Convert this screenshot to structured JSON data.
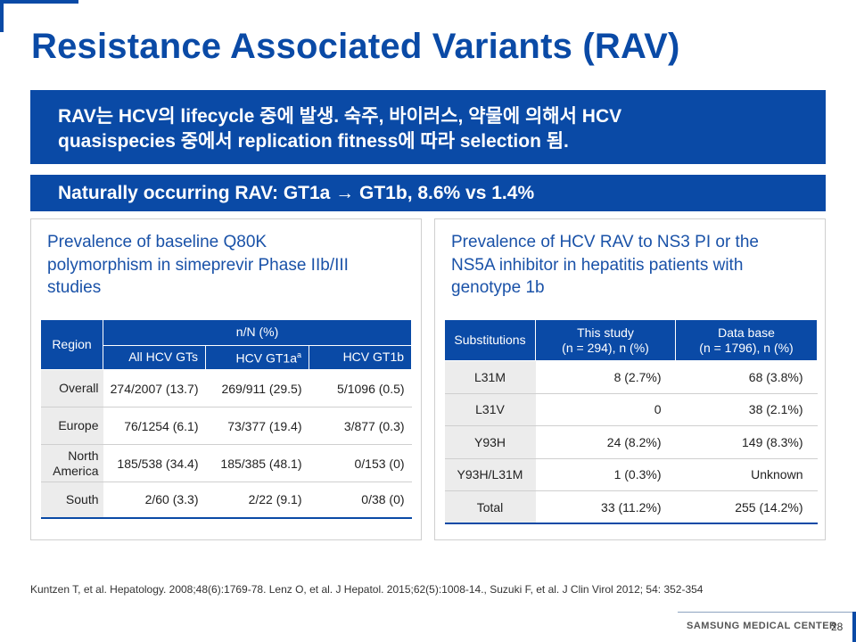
{
  "slide": {
    "title": "Resistance Associated Variants (RAV)",
    "banner1": {
      "line1": "RAV는 HCV의 lifecycle 중에 발생. 숙주, 바이러스, 약물에 의해서 HCV",
      "line2": "quasispecies  중에서 replication fitness에 따라 selection 됨."
    },
    "banner2": "Naturally occurring RAV:  GT1a  → GT1b, 8.6% vs 1.4%",
    "footnote": "Kuntzen T, et al. Hepatology. 2008;48(6):1769-78. Lenz O, et al. J Hepatol.  2015;62(5):1008-14., Suzuki F, et al. J Clin Virol 2012; 54: 352-354",
    "brand": "SAMSUNG MEDICAL CENTER",
    "page_number": "28"
  },
  "left_panel": {
    "heading": {
      "line1": "Prevalence of baseline Q80K",
      "line2": "polymorphism  in simeprevir Phase IIb/III",
      "line3": "studies"
    },
    "table": {
      "region_header": "Region",
      "group_header": "n/N (%)",
      "col1": "All HCV GTs",
      "col2": "HCV GT1a",
      "col2_sup": "a",
      "col3": "HCV GT1b",
      "rows": [
        {
          "region": "Overall",
          "all": "274/2007 (13.7)",
          "gt1a": "269/911 (29.5)",
          "gt1b": "5/1096 (0.5)"
        },
        {
          "region": "Europe",
          "all": "76/1254 (6.1)",
          "gt1a": "73/377 (19.4)",
          "gt1b": "3/877 (0.3)"
        },
        {
          "region_line1": "North",
          "region_line2": "America",
          "all": "185/538 (34.4)",
          "gt1a": "185/385 (48.1)",
          "gt1b": "0/153 (0)"
        },
        {
          "region": "South",
          "all": "2/60 (3.3)",
          "gt1a": "2/22 (9.1)",
          "gt1b": "0/38 (0)"
        }
      ]
    }
  },
  "right_panel": {
    "heading": {
      "line1": "Prevalence of HCV RAV to NS3 PI or the",
      "line2": "NS5A inhibitor in hepatitis patients with",
      "line3": "genotype  1b"
    },
    "table": {
      "col1": "Substitutions",
      "col2_line1": "This study",
      "col2_line2": "(n = 294), n (%)",
      "col3_line1": "Data base",
      "col3_line2": "(n = 1796), n (%)",
      "rows": [
        {
          "sub": "L31M",
          "study": "8 (2.7%)",
          "db": "68 (3.8%)"
        },
        {
          "sub": "L31V",
          "study": "0",
          "db": "38 (2.1%)"
        },
        {
          "sub": "Y93H",
          "study": "24 (8.2%)",
          "db": "149 (8.3%)"
        },
        {
          "sub": "Y93H/L31M",
          "study": "1 (0.3%)",
          "db": "Unknown"
        },
        {
          "sub": "Total",
          "study": "33 (11.2%)",
          "db": "255 (14.2%)"
        }
      ]
    }
  }
}
